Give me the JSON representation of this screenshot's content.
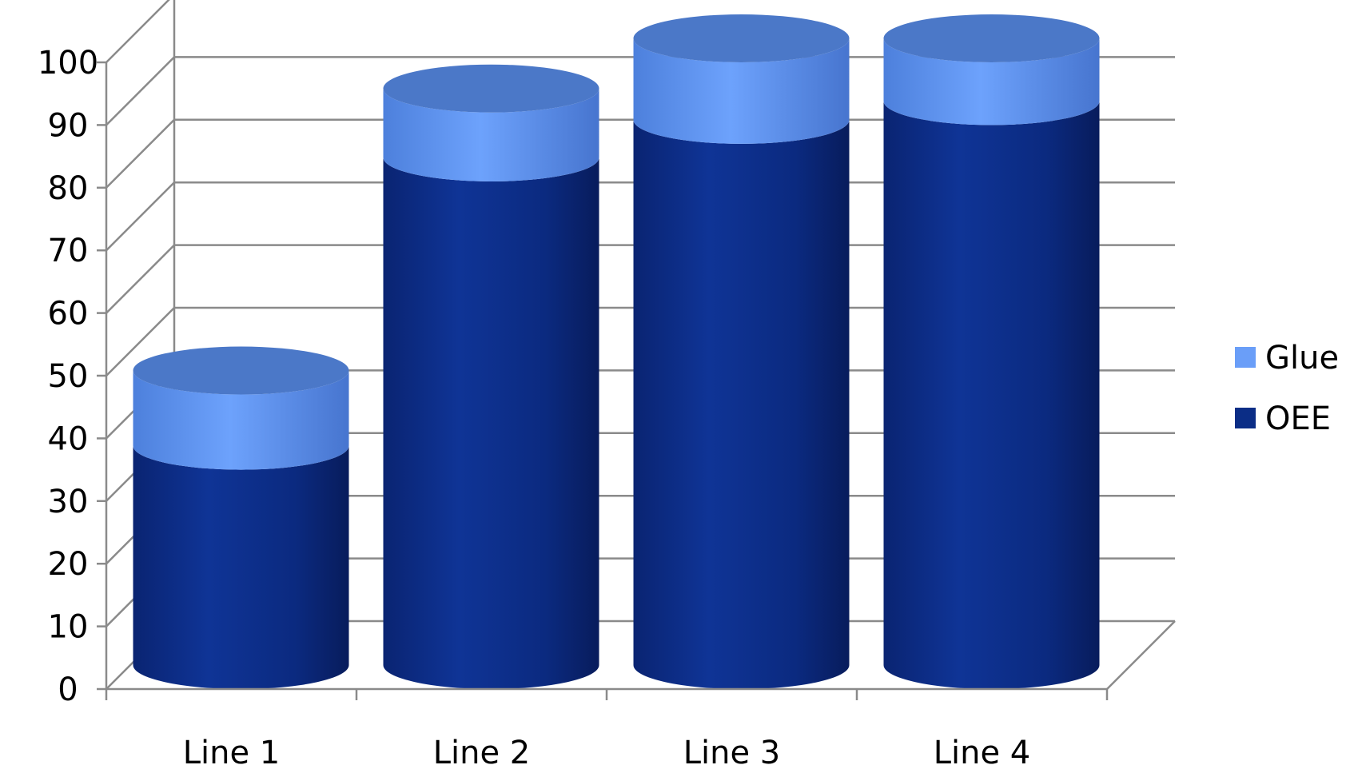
{
  "chart_data": {
    "type": "bar",
    "categories": [
      "Line 1",
      "Line 2",
      "Line 3",
      "Line 4"
    ],
    "series": [
      {
        "name": "OEE",
        "values": [
          35,
          81,
          87,
          90
        ],
        "color": "#0b2d86"
      },
      {
        "name": "Glue",
        "values": [
          12,
          11,
          13,
          10
        ],
        "color": "#6a9ef8"
      }
    ],
    "stacked": true,
    "shape": "cylinder-3d",
    "ylim": [
      0,
      100
    ],
    "yticks": [
      "0",
      "10",
      "20",
      "30",
      "40",
      "50",
      "60",
      "70",
      "80",
      "90",
      "100"
    ],
    "grid": true,
    "legend_position": "right"
  }
}
